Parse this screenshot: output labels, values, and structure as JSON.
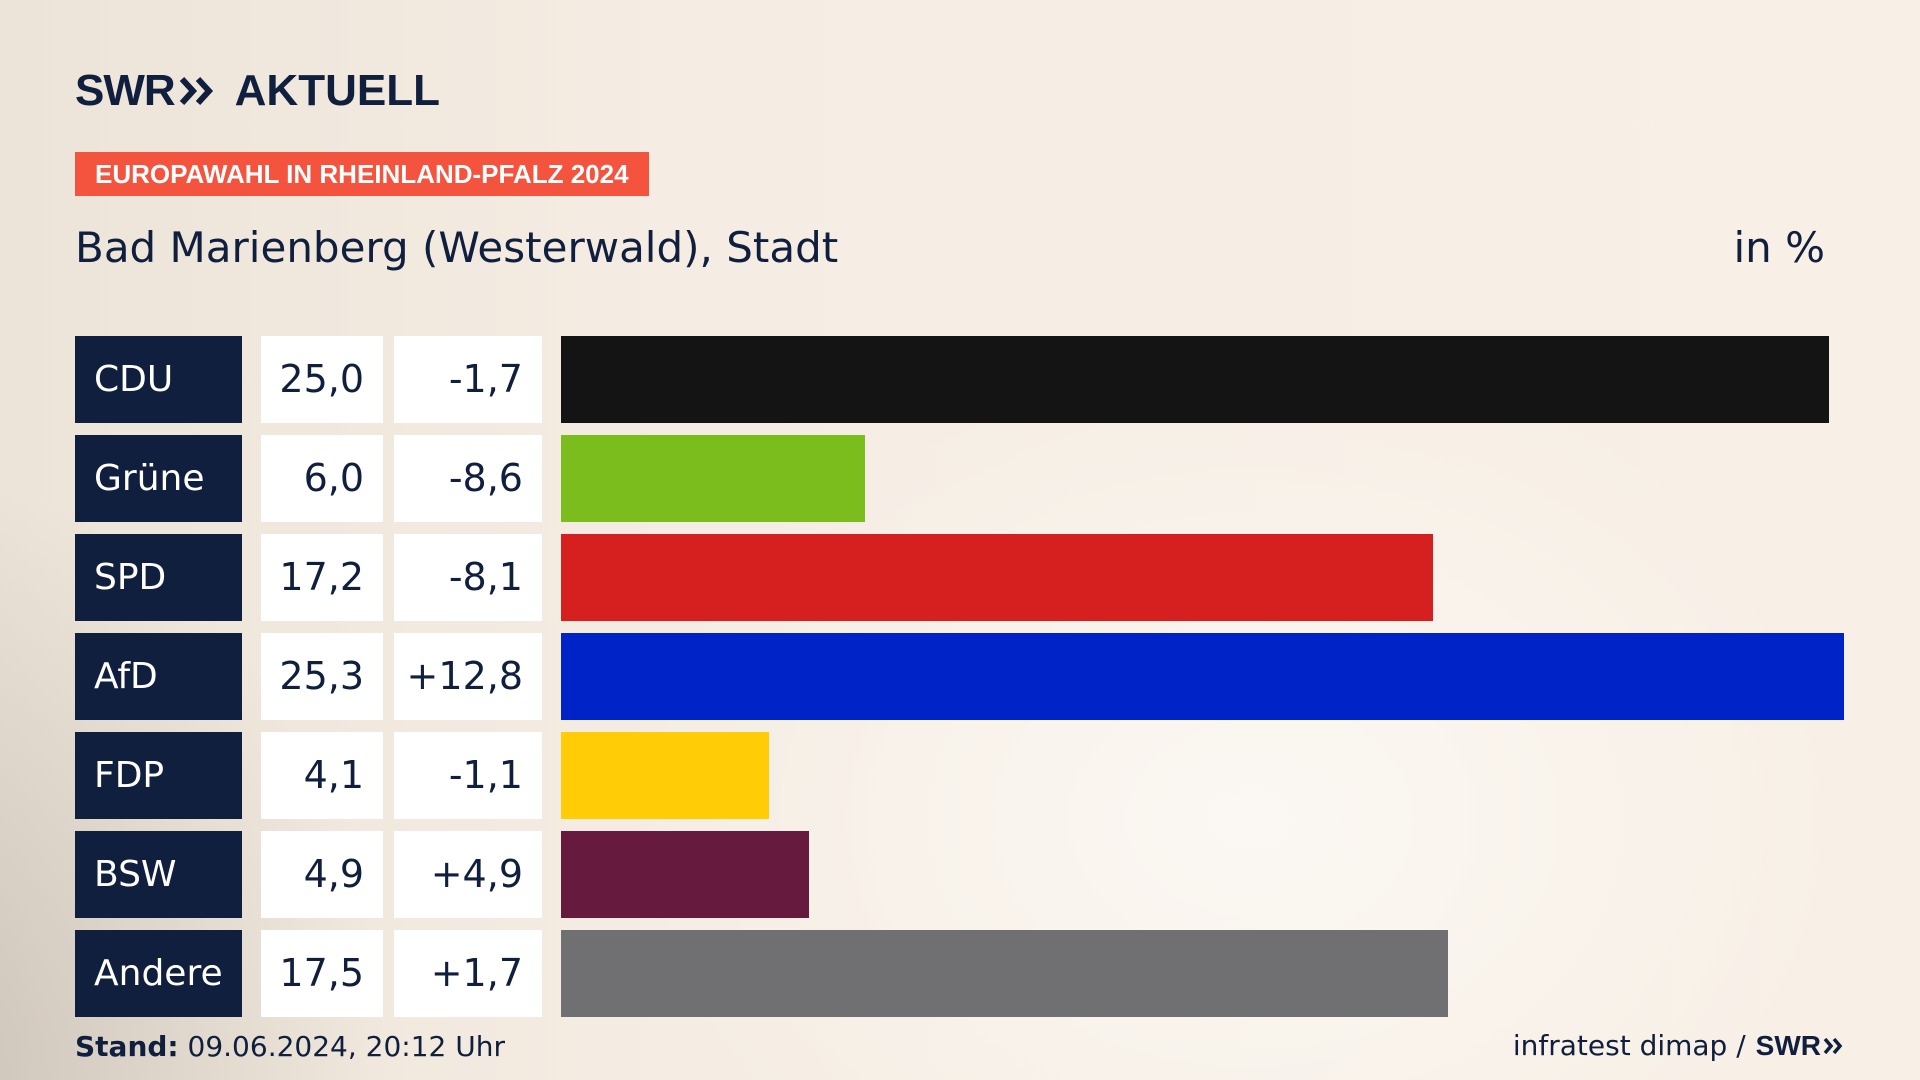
{
  "header": {
    "logo_brand": "SWR",
    "logo_product": "AKTUELL",
    "banner": "EUROPAWAHL IN RHEINLAND-PFALZ 2024",
    "title": "Bad Marienberg (Westerwald), Stadt",
    "unit": "in %"
  },
  "chart_data": {
    "type": "bar",
    "orientation": "horizontal",
    "title": "Bad Marienberg (Westerwald), Stadt",
    "unit": "in %",
    "categories": [
      "CDU",
      "Grüne",
      "SPD",
      "AfD",
      "FDP",
      "BSW",
      "Andere"
    ],
    "values": [
      25.0,
      6.0,
      17.2,
      25.3,
      4.1,
      4.9,
      17.5
    ],
    "value_labels": [
      "25,0",
      "6,0",
      "17,2",
      "25,3",
      "4,1",
      "4,9",
      "17,5"
    ],
    "diff_labels": [
      "-1,7",
      "-8,6",
      "-8,1",
      "+12,8",
      "-1,1",
      "+4,9",
      "+1,7"
    ],
    "colors": [
      "#141414",
      "#7abd1c",
      "#d62020",
      "#0023c8",
      "#ffcc05",
      "#661a3d",
      "#707072"
    ],
    "xlim": [
      0,
      25.3
    ]
  },
  "colors": {
    "navy": "#0f1f3d",
    "accent": "#f4533e"
  },
  "footer": {
    "stand_label": "Stand:",
    "stand_value": "09.06.2024, 20:12 Uhr",
    "source": "infratest dimap /",
    "source_brand": "SWR"
  }
}
